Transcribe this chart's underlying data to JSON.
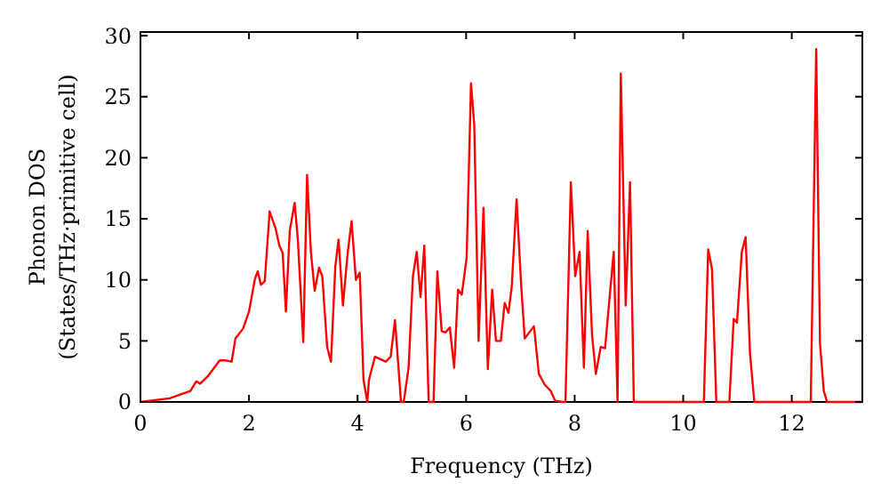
{
  "chart_data": {
    "type": "line",
    "xlabel": "Frequency (THz)",
    "ylabel": "Phonon DOS\n(States/THz·primitive cell)",
    "xlim": [
      0,
      13.3
    ],
    "ylim": [
      0,
      30.3
    ],
    "xticks": [
      0,
      2,
      4,
      6,
      8,
      10,
      12
    ],
    "yticks": [
      0,
      5,
      10,
      15,
      20,
      25,
      30
    ],
    "grid": false,
    "marker": "none",
    "line_style": "solid",
    "series": [
      {
        "color": "#ff0000",
        "x": [
          0,
          0.54,
          0.92,
          1.03,
          1.1,
          1.24,
          1.46,
          1.57,
          1.68,
          1.75,
          1.89,
          2.0,
          2.11,
          2.16,
          2.22,
          2.29,
          2.38,
          2.49,
          2.56,
          2.62,
          2.68,
          2.75,
          2.84,
          2.9,
          3.0,
          3.07,
          3.14,
          3.21,
          3.29,
          3.35,
          3.44,
          3.51,
          3.59,
          3.65,
          3.73,
          3.82,
          3.89,
          3.97,
          4.04,
          4.11,
          4.18,
          4.21,
          4.32,
          4.52,
          4.61,
          4.69,
          4.8,
          4.85,
          4.94,
          5.02,
          5.09,
          5.16,
          5.23,
          5.31,
          5.4,
          5.47,
          5.55,
          5.62,
          5.7,
          5.78,
          5.85,
          5.92,
          6.01,
          6.09,
          6.15,
          6.23,
          6.32,
          6.4,
          6.48,
          6.55,
          6.64,
          6.71,
          6.78,
          6.84,
          6.93,
          7.01,
          7.08,
          7.25,
          7.34,
          7.45,
          7.56,
          7.64,
          7.78,
          7.83,
          7.93,
          8.01,
          8.09,
          8.17,
          8.24,
          8.32,
          8.39,
          8.48,
          8.56,
          8.63,
          8.72,
          8.79,
          8.85,
          8.94,
          9.02,
          9.09,
          10.38,
          10.46,
          10.53,
          10.61,
          10.85,
          10.93,
          10.99,
          11.08,
          11.15,
          11.23,
          11.31,
          12.35,
          12.45,
          12.52,
          12.59,
          12.65,
          13.3
        ],
        "values": [
          0,
          0.3,
          0.9,
          1.7,
          1.5,
          2.1,
          3.4,
          3.4,
          3.3,
          5.2,
          6,
          7.4,
          10.1,
          10.7,
          9.6,
          9.9,
          15.6,
          14.2,
          12.8,
          12.2,
          7.4,
          14,
          16.3,
          13.3,
          4.9,
          18.6,
          12.3,
          9.1,
          11,
          10.3,
          4.5,
          3.3,
          11.1,
          13.3,
          7.9,
          12.3,
          14.8,
          10,
          10.6,
          1.8,
          0,
          1.8,
          3.7,
          3.3,
          3.7,
          6.7,
          0,
          0,
          2.8,
          10.3,
          12.3,
          8.6,
          12.8,
          0,
          0,
          10.7,
          5.8,
          5.7,
          6.1,
          2.8,
          9.2,
          8.8,
          11.8,
          26.1,
          22.7,
          5,
          15.9,
          2.7,
          9.2,
          5,
          5,
          8.1,
          7.3,
          9.4,
          16.6,
          9.9,
          5.2,
          6.2,
          2.3,
          1.4,
          0.9,
          0.1,
          0,
          0,
          18,
          10.3,
          12.3,
          2.8,
          14,
          5.5,
          2.3,
          4.5,
          4.4,
          7.9,
          12.3,
          0,
          26.9,
          7.9,
          18,
          0,
          0,
          12.5,
          10.9,
          0,
          0,
          6.8,
          6.5,
          12.3,
          13.5,
          4,
          0,
          0,
          28.9,
          4.8,
          0.9,
          0,
          0
        ]
      }
    ]
  }
}
